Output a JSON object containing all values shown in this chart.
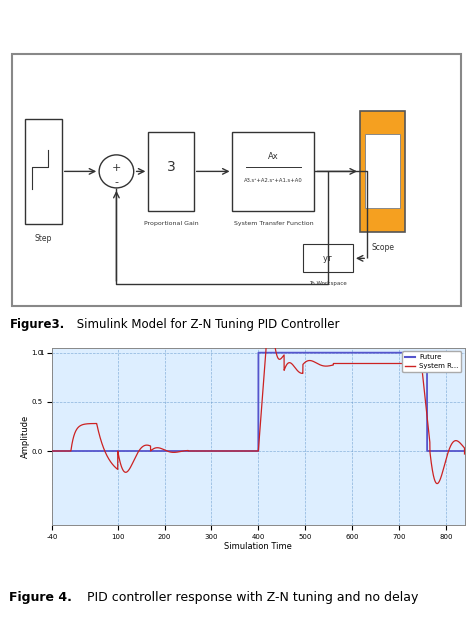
{
  "xlabel": "Simulation Time",
  "ylabel": "Amplitude",
  "xlim": [
    -40,
    840
  ],
  "ylim": [
    -0.75,
    1.05
  ],
  "xticks": [
    -40,
    100,
    200,
    300,
    400,
    500,
    600,
    700,
    800
  ],
  "yticks": [
    0.0,
    0.5,
    1.0
  ],
  "legend_labels": [
    "Future",
    "System R..."
  ],
  "ref_color": "#5555cc",
  "sys_color": "#cc2222",
  "grid_color": "#6699cc",
  "plot_bg": "#ddeeff",
  "fig_bg": "#ffffff",
  "fig3_bold": "Figure3.",
  "fig3_rest": " Simulink Model for Z-N Tuning PID Controller",
  "fig4_bold": "Figure 4.",
  "fig4_rest": " PID controller response with Z-N tuning and no delay"
}
